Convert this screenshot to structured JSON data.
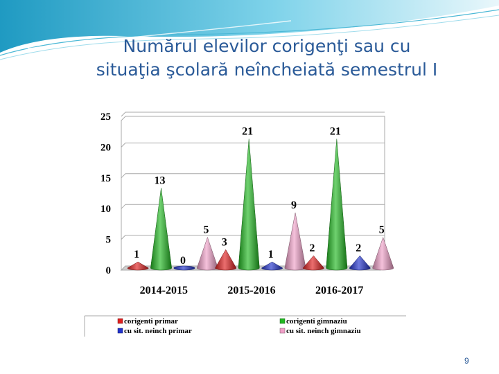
{
  "slide": {
    "title_line1": "Numărul  elevilor corigenţi sau cu",
    "title_line2": "situaţia şcolară neîncheiată semestrul I",
    "page_number": "9"
  },
  "colors": {
    "title": "#2a5a98",
    "header_wave": "#4bb8d6"
  },
  "chart_data": {
    "type": "bar",
    "bar_shape": "cone",
    "categories": [
      "2014-2015",
      "2015-2016",
      "2016-2017"
    ],
    "series": [
      {
        "name": "corigenti primar",
        "color": "#e02020",
        "values": [
          1,
          3,
          2
        ]
      },
      {
        "name": "corigenti gimnaziu",
        "color": "#22b822",
        "values": [
          13,
          21,
          21
        ]
      },
      {
        "name": "cu sit. neinch primar",
        "color": "#2233cc",
        "values": [
          0,
          1,
          2
        ]
      },
      {
        "name": "cu sit. neinch gimnaziu",
        "color": "#f0a0c8",
        "values": [
          5,
          9,
          5
        ]
      }
    ],
    "yticks": [
      "0",
      "5",
      "10",
      "15",
      "20",
      "25"
    ],
    "ylim": [
      0,
      25
    ],
    "grid": true,
    "legend_position": "bottom"
  }
}
